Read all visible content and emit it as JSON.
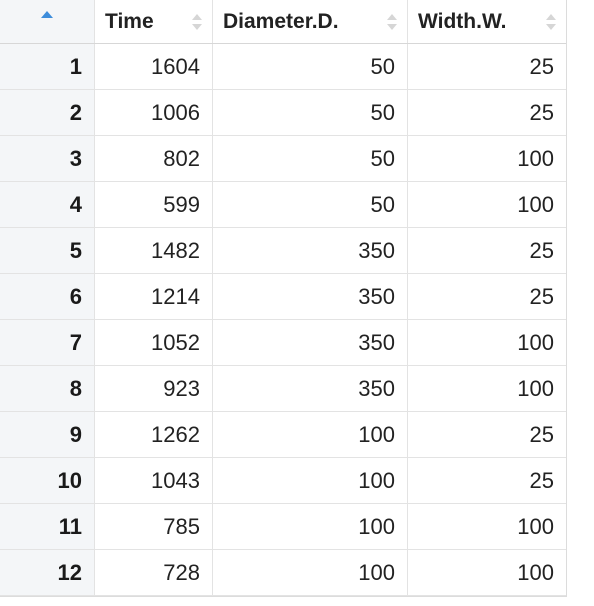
{
  "table": {
    "columns": [
      "Time",
      "Diameter.D.",
      "Width.W."
    ],
    "rows": [
      {
        "index": "1",
        "time": "1604",
        "diameter": "50",
        "width": "25"
      },
      {
        "index": "2",
        "time": "1006",
        "diameter": "50",
        "width": "25"
      },
      {
        "index": "3",
        "time": "802",
        "diameter": "50",
        "width": "100"
      },
      {
        "index": "4",
        "time": "599",
        "diameter": "50",
        "width": "100"
      },
      {
        "index": "5",
        "time": "1482",
        "diameter": "350",
        "width": "25"
      },
      {
        "index": "6",
        "time": "1214",
        "diameter": "350",
        "width": "25"
      },
      {
        "index": "7",
        "time": "1052",
        "diameter": "350",
        "width": "100"
      },
      {
        "index": "8",
        "time": "923",
        "diameter": "350",
        "width": "100"
      },
      {
        "index": "9",
        "time": "1262",
        "diameter": "100",
        "width": "25"
      },
      {
        "index": "10",
        "time": "1043",
        "diameter": "100",
        "width": "25"
      },
      {
        "index": "11",
        "time": "785",
        "diameter": "100",
        "width": "100"
      },
      {
        "index": "12",
        "time": "728",
        "diameter": "100",
        "width": "100"
      }
    ]
  },
  "colors": {
    "sort_active": "#3d8ddb",
    "sort_inactive": "#d6d6d6",
    "index_column_bg": "#f4f6f8"
  }
}
